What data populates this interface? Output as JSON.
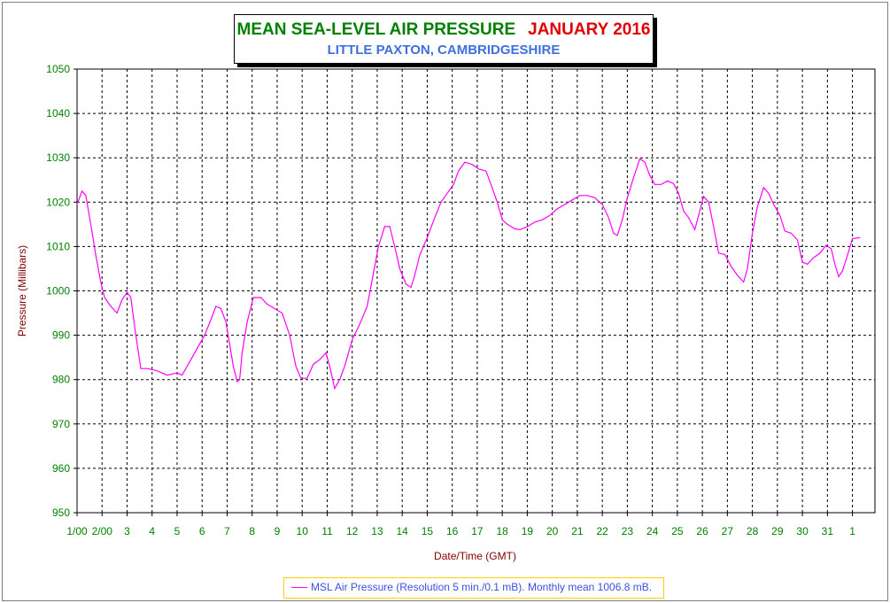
{
  "title": {
    "main": "MEAN SEA-LEVEL AIR PRESSURE",
    "month": "JANUARY 2016",
    "subtitle": "LITTLE PAXTON, CAMBRIDGESHIRE"
  },
  "legend": {
    "text": "MSL Air Pressure (Resolution 5 min./0.1 mB). Monthly mean 1006.8 mB."
  },
  "colors": {
    "title_main": "#008000",
    "title_month": "#e00000",
    "subtitle": "#3f6fdf",
    "axis_ticks": "#008000",
    "axis_labels": "#800000",
    "series": "#ff00ff",
    "grid": "#000000",
    "legend_border": "#ffd000"
  },
  "chart_data": {
    "type": "line",
    "title": "MEAN SEA-LEVEL AIR PRESSURE JANUARY 2016",
    "subtitle": "LITTLE PAXTON, CAMBRIDGESHIRE",
    "xlabel": "Date/Time (GMT)",
    "ylabel": "Pressure (Millibars)",
    "ylim": [
      950,
      1050
    ],
    "yticks": [
      950,
      960,
      970,
      980,
      990,
      1000,
      1010,
      1020,
      1030,
      1040,
      1050
    ],
    "xlim": [
      1,
      32.9
    ],
    "xticks": [
      {
        "day": 1,
        "label": "1/00"
      },
      {
        "day": 2,
        "label": "2/00"
      },
      {
        "day": 3,
        "label": "3"
      },
      {
        "day": 4,
        "label": "4"
      },
      {
        "day": 5,
        "label": "5"
      },
      {
        "day": 6,
        "label": "6"
      },
      {
        "day": 7,
        "label": "7"
      },
      {
        "day": 8,
        "label": "8"
      },
      {
        "day": 9,
        "label": "9"
      },
      {
        "day": 10,
        "label": "10"
      },
      {
        "day": 11,
        "label": "11"
      },
      {
        "day": 12,
        "label": "12"
      },
      {
        "day": 13,
        "label": "13"
      },
      {
        "day": 14,
        "label": "14"
      },
      {
        "day": 15,
        "label": "15"
      },
      {
        "day": 16,
        "label": "16"
      },
      {
        "day": 17,
        "label": "17"
      },
      {
        "day": 18,
        "label": "18"
      },
      {
        "day": 19,
        "label": "19"
      },
      {
        "day": 20,
        "label": "20"
      },
      {
        "day": 21,
        "label": "21"
      },
      {
        "day": 22,
        "label": "22"
      },
      {
        "day": 23,
        "label": "23"
      },
      {
        "day": 24,
        "label": "24"
      },
      {
        "day": 25,
        "label": "25"
      },
      {
        "day": 26,
        "label": "26"
      },
      {
        "day": 27,
        "label": "27"
      },
      {
        "day": 28,
        "label": "28"
      },
      {
        "day": 29,
        "label": "29"
      },
      {
        "day": 30,
        "label": "30"
      },
      {
        "day": 31,
        "label": "31"
      },
      {
        "day": 32,
        "label": "1"
      }
    ],
    "grid": true,
    "legend_position": "bottom",
    "series": [
      {
        "name": "MSL Air Pressure (Resolution 5 min./0.1 mB). Monthly mean 1006.8 mB.",
        "points": [
          [
            1.0,
            1019.5
          ],
          [
            1.2,
            1022.5
          ],
          [
            1.35,
            1021.5
          ],
          [
            1.55,
            1015
          ],
          [
            1.75,
            1008
          ],
          [
            1.95,
            1002
          ],
          [
            2.1,
            998.5
          ],
          [
            2.35,
            996.5
          ],
          [
            2.6,
            995
          ],
          [
            2.8,
            998
          ],
          [
            3.0,
            999.7
          ],
          [
            3.15,
            998.5
          ],
          [
            3.35,
            990
          ],
          [
            3.55,
            982.5
          ],
          [
            3.8,
            982.5
          ],
          [
            4.2,
            982
          ],
          [
            4.6,
            981
          ],
          [
            5.0,
            981.5
          ],
          [
            5.2,
            981
          ],
          [
            5.5,
            984
          ],
          [
            5.8,
            987
          ],
          [
            6.1,
            990
          ],
          [
            6.35,
            993.5
          ],
          [
            6.55,
            996.5
          ],
          [
            6.75,
            996
          ],
          [
            6.95,
            993
          ],
          [
            7.1,
            988
          ],
          [
            7.25,
            983
          ],
          [
            7.4,
            979.5
          ],
          [
            7.5,
            980
          ],
          [
            7.6,
            986
          ],
          [
            7.8,
            993
          ],
          [
            8.05,
            998.5
          ],
          [
            8.35,
            998.5
          ],
          [
            8.6,
            997
          ],
          [
            8.9,
            996
          ],
          [
            9.2,
            995
          ],
          [
            9.5,
            990
          ],
          [
            9.75,
            983
          ],
          [
            9.95,
            980.3
          ],
          [
            10.2,
            980.3
          ],
          [
            10.45,
            983.5
          ],
          [
            10.7,
            984.5
          ],
          [
            10.95,
            986
          ],
          [
            11.1,
            983
          ],
          [
            11.3,
            978
          ],
          [
            11.5,
            980
          ],
          [
            11.7,
            983
          ],
          [
            12.0,
            989
          ],
          [
            12.3,
            992.5
          ],
          [
            12.6,
            996.5
          ],
          [
            12.85,
            1004
          ],
          [
            13.05,
            1010
          ],
          [
            13.3,
            1014.5
          ],
          [
            13.5,
            1014.5
          ],
          [
            13.7,
            1010
          ],
          [
            13.9,
            1005
          ],
          [
            14.15,
            1001.5
          ],
          [
            14.35,
            1000.8
          ],
          [
            14.5,
            1003.5
          ],
          [
            14.7,
            1008
          ],
          [
            15.0,
            1012
          ],
          [
            15.3,
            1016.5
          ],
          [
            15.55,
            1020
          ],
          [
            15.8,
            1022
          ],
          [
            16.05,
            1024
          ],
          [
            16.25,
            1027
          ],
          [
            16.5,
            1029
          ],
          [
            16.8,
            1028.5
          ],
          [
            17.05,
            1027.5
          ],
          [
            17.35,
            1027
          ],
          [
            17.55,
            1024
          ],
          [
            17.8,
            1020
          ],
          [
            18.0,
            1016
          ],
          [
            18.2,
            1015
          ],
          [
            18.5,
            1014
          ],
          [
            18.7,
            1013.8
          ],
          [
            19.0,
            1014.5
          ],
          [
            19.3,
            1015.5
          ],
          [
            19.6,
            1016
          ],
          [
            19.9,
            1017
          ],
          [
            20.2,
            1018.5
          ],
          [
            20.5,
            1019.5
          ],
          [
            20.8,
            1020.5
          ],
          [
            21.1,
            1021.5
          ],
          [
            21.4,
            1021.5
          ],
          [
            21.7,
            1021
          ],
          [
            22.0,
            1019.5
          ],
          [
            22.25,
            1016.5
          ],
          [
            22.45,
            1013
          ],
          [
            22.6,
            1012.5
          ],
          [
            22.8,
            1016
          ],
          [
            23.0,
            1021
          ],
          [
            23.25,
            1025.5
          ],
          [
            23.5,
            1029.8
          ],
          [
            23.7,
            1029
          ],
          [
            23.9,
            1026
          ],
          [
            24.1,
            1024
          ],
          [
            24.35,
            1024
          ],
          [
            24.6,
            1024.8
          ],
          [
            24.85,
            1024.2
          ],
          [
            25.05,
            1022
          ],
          [
            25.25,
            1018
          ],
          [
            25.45,
            1016.5
          ],
          [
            25.7,
            1013.8
          ],
          [
            25.85,
            1017
          ],
          [
            26.05,
            1021.3
          ],
          [
            26.25,
            1020
          ],
          [
            26.45,
            1014.5
          ],
          [
            26.65,
            1008.5
          ],
          [
            26.9,
            1008.2
          ],
          [
            27.15,
            1005.5
          ],
          [
            27.4,
            1003.5
          ],
          [
            27.65,
            1002
          ],
          [
            27.8,
            1005
          ],
          [
            28.0,
            1013
          ],
          [
            28.2,
            1019
          ],
          [
            28.45,
            1023.3
          ],
          [
            28.65,
            1022
          ],
          [
            28.85,
            1019.5
          ],
          [
            29.1,
            1017
          ],
          [
            29.3,
            1013.5
          ],
          [
            29.55,
            1013
          ],
          [
            29.8,
            1011.5
          ],
          [
            30.0,
            1006.5
          ],
          [
            30.2,
            1006
          ],
          [
            30.45,
            1007.5
          ],
          [
            30.7,
            1008.5
          ],
          [
            30.95,
            1010.3
          ],
          [
            31.15,
            1009.5
          ],
          [
            31.3,
            1006
          ],
          [
            31.45,
            1003.2
          ],
          [
            31.6,
            1004.5
          ],
          [
            31.8,
            1008
          ],
          [
            32.0,
            1011.8
          ],
          [
            32.3,
            1012
          ]
        ]
      }
    ]
  }
}
